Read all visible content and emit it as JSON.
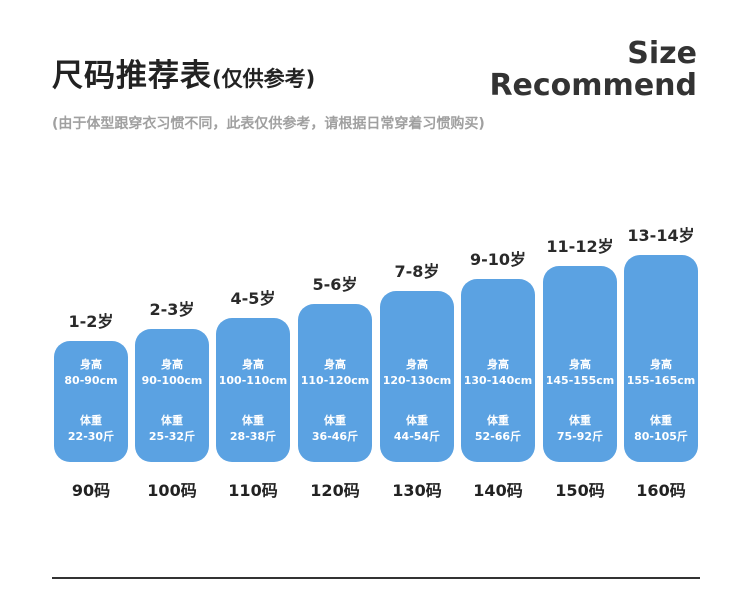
{
  "header": {
    "title": "尺码推荐表",
    "title_sub": "(仅供参考)",
    "en_line1": "Size",
    "en_line2": "Recommend",
    "note": "(由于体型跟穿衣习惯不同，此表仅供参考，请根据日常穿着习惯购买)"
  },
  "colors": {
    "bar": "#5ba2e2",
    "text": "#222222",
    "note": "#a0a0a0"
  },
  "labels": {
    "height": "身高",
    "weight": "体重"
  },
  "sizes": [
    {
      "age": "1-2岁",
      "height": "80-90cm",
      "weight": "22-30斤",
      "size": "90码"
    },
    {
      "age": "2-3岁",
      "height": "90-100cm",
      "weight": "25-32斤",
      "size": "100码"
    },
    {
      "age": "4-5岁",
      "height": "100-110cm",
      "weight": "28-38斤",
      "size": "110码"
    },
    {
      "age": "5-6岁",
      "height": "110-120cm",
      "weight": "36-46斤",
      "size": "120码"
    },
    {
      "age": "7-8岁",
      "height": "120-130cm",
      "weight": "44-54斤",
      "size": "130码"
    },
    {
      "age": "9-10岁",
      "height": "130-140cm",
      "weight": "52-66斤",
      "size": "140码"
    },
    {
      "age": "11-12岁",
      "height": "145-155cm",
      "weight": "75-92斤",
      "size": "150码"
    },
    {
      "age": "13-14岁",
      "height": "155-165cm",
      "weight": "80-105斤",
      "size": "160码"
    }
  ]
}
